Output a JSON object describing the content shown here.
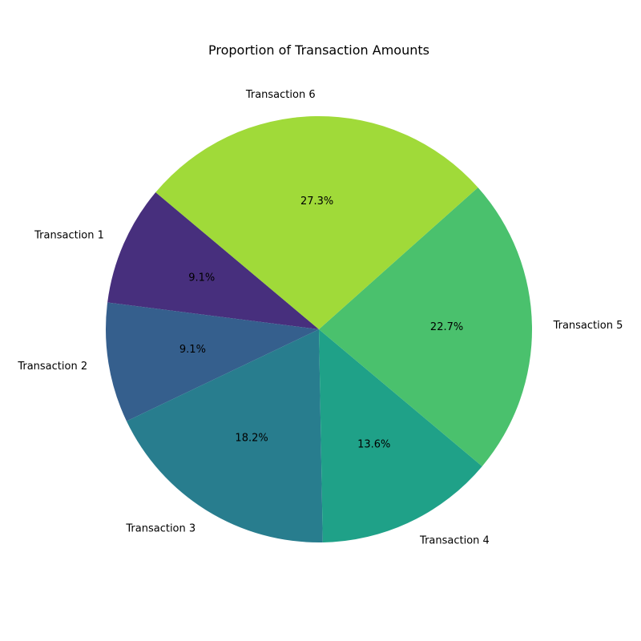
{
  "chart_data": {
    "type": "pie",
    "title": "Proportion of Transaction Amounts",
    "categories": [
      "Transaction 1",
      "Transaction 2",
      "Transaction 3",
      "Transaction 4",
      "Transaction 5",
      "Transaction 6"
    ],
    "values": [
      9.1,
      9.1,
      18.2,
      13.6,
      22.7,
      27.3
    ],
    "percent_labels": [
      "9.1%",
      "9.1%",
      "18.2%",
      "13.6%",
      "22.7%",
      "27.3%"
    ],
    "colors": [
      "#472f7d",
      "#355f8d",
      "#287d8e",
      "#1fa188",
      "#4ac16d",
      "#a0da39"
    ],
    "start_angle_deg": 140,
    "direction": "counterclockwise",
    "legend": "none"
  }
}
